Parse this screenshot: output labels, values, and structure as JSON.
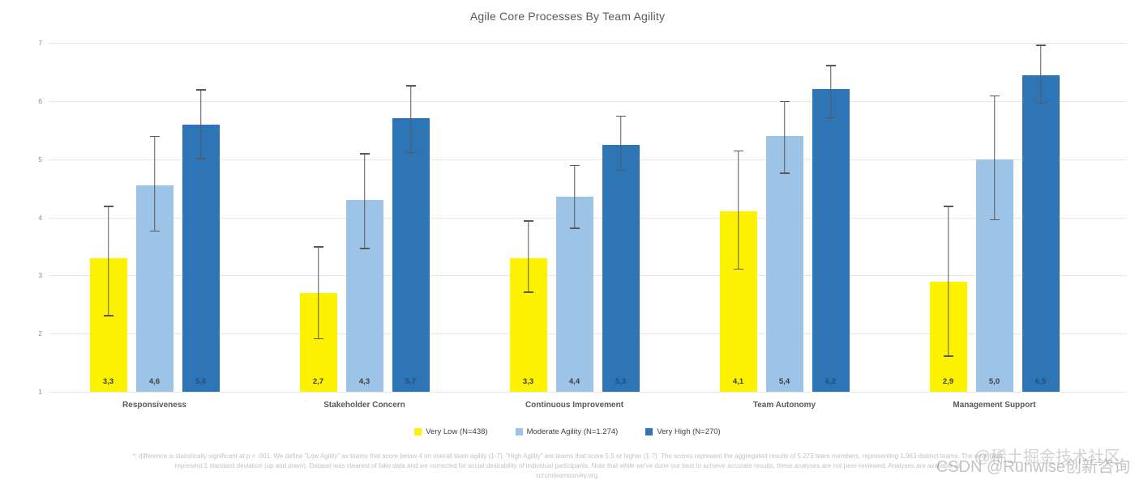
{
  "title": "Agile Core Processes By Team Agility",
  "chart_data": {
    "type": "bar",
    "title": "Agile Core Processes By Team Agility",
    "categories": [
      "Responsiveness",
      "Stakeholder Concern",
      "Continuous Improvement",
      "Team Autonomy",
      "Management Support"
    ],
    "series": [
      {
        "name": "Very Low (N=438)",
        "color": "#fdf200",
        "label_color": "#3f3f3f",
        "values": [
          3.3,
          2.7,
          3.3,
          4.1,
          2.9
        ],
        "labels": [
          "3,3",
          "2,7",
          "3,3",
          "4,1",
          "2,9"
        ],
        "err_low": [
          2.3,
          1.9,
          2.7,
          3.1,
          1.6
        ],
        "err_high": [
          4.2,
          3.5,
          3.95,
          5.15,
          4.2
        ]
      },
      {
        "name": "Moderate Agility (N=1.274)",
        "color": "#9dc3e6",
        "label_color": "#3f3f3f",
        "values": [
          4.55,
          4.3,
          4.35,
          5.4,
          5.0
        ],
        "labels": [
          "4,6",
          "4,3",
          "4,4",
          "5,4",
          "5,0"
        ],
        "err_low": [
          3.75,
          3.45,
          3.8,
          4.75,
          3.95
        ],
        "err_high": [
          5.4,
          5.1,
          4.9,
          6.0,
          6.1
        ]
      },
      {
        "name": "Very High (N=270)",
        "color": "#2e75b6",
        "label_color": "#1f4e79",
        "values": [
          5.6,
          5.7,
          5.25,
          6.2,
          6.45
        ],
        "labels": [
          "5,6",
          "5,7",
          "5,3",
          "6,2",
          "6,5"
        ],
        "err_low": [
          5.0,
          5.1,
          4.8,
          5.7,
          5.95
        ],
        "err_high": [
          6.2,
          6.27,
          5.75,
          6.62,
          6.97
        ]
      }
    ],
    "ylim": [
      1,
      7
    ],
    "yticks": [
      1,
      2,
      3,
      4,
      5,
      6,
      7
    ],
    "grid": true,
    "legend_position": "bottom",
    "error_bar_color": "#595959"
  },
  "footnote": {
    "line1": "*: difference is statistically significant at p < .001. We define \"Low Agility\" as teams that score below 4 on overall team agility (1-7). \"High Agility\" are teams that score 5.5 or higher (1-7). The scores represent the aggregated results of 5.273 team members, representing 1.963 distinct teams. The error bars",
    "line2": "represent 1 standard deviation (up and down). Dataset was cleaned of fake data and we corrected for social desirability of individual participants. Note that while we've done our best to achieve accurate results, these analyses are not peer-reviewed. Analyses are available at",
    "line3": "scrumteamsurvey.org."
  },
  "watermark": {
    "line1": "@稀土掘金技术社区",
    "line2": "CSDN @Runwise创新咨询"
  }
}
